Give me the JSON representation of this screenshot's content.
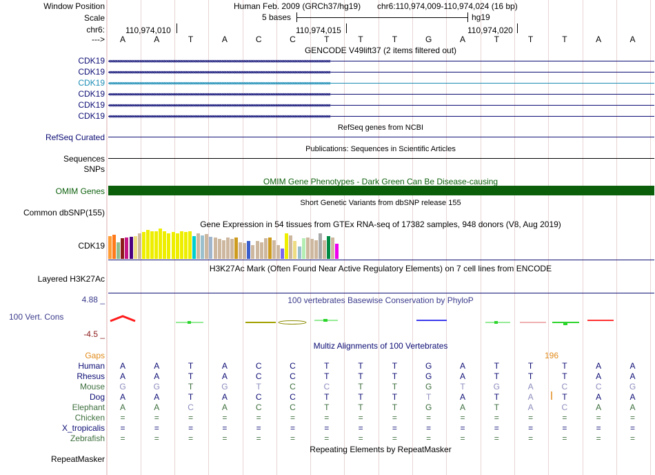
{
  "header": {
    "window_position_label": "Window Position",
    "assembly": "Human Feb. 2009 (GRCh37/hg19)",
    "position": "chr6:110,974,009-110,974,024 (16 bp)",
    "scale_label": "Scale",
    "scale_bar_text": "5 bases",
    "scale_db": "hg19",
    "chr_label": "chr6:",
    "ticks": [
      "110,974,010",
      "110,974,015",
      "110,974,020"
    ],
    "strand_label": "--->"
  },
  "bases": [
    "A",
    "A",
    "T",
    "A",
    "C",
    "C",
    "T",
    "T",
    "T",
    "G",
    "A",
    "T",
    "T",
    "T",
    "A",
    "A"
  ],
  "gencode": {
    "title": "GENCODE V49lift37 (2 items filtered out)",
    "transcripts": [
      "CDK19",
      "CDK19",
      "CDK19",
      "CDK19",
      "CDK19",
      "CDK19"
    ]
  },
  "refseq": {
    "title": "RefSeq genes from NCBI",
    "label": "RefSeq Curated"
  },
  "publications": {
    "title": "Publications: Sequences in Scientific Articles",
    "label": "Sequences"
  },
  "snps": {
    "label": "SNPs"
  },
  "omim": {
    "title": "OMIM Gene Phenotypes - Dark Green Can Be Disease-causing",
    "label": "OMIM Genes",
    "color": "#0b5f0b"
  },
  "dbsnp": {
    "title": "Short Genetic Variants from dbSNP release 155",
    "label": "Common dbSNP(155)"
  },
  "gtex": {
    "title": "Gene Expression in 54 tissues from GTEx RNA-seq of 17382 samples, 948 donors (V8, Aug 2019)",
    "label": "CDK19",
    "bars": [
      {
        "level": 0.75,
        "color": "#ff9c33"
      },
      {
        "level": 0.8,
        "color": "#ff7a1a"
      },
      {
        "level": 0.55,
        "color": "#8fbc8f"
      },
      {
        "level": 0.68,
        "color": "#8b1a1a"
      },
      {
        "level": 0.7,
        "color": "#c71585"
      },
      {
        "level": 0.72,
        "color": "#4b0082"
      },
      {
        "level": 0.75,
        "color": "#eedd82"
      },
      {
        "level": 0.85,
        "color": "#cdb79e"
      },
      {
        "level": 0.88,
        "color": "#eeee00"
      },
      {
        "level": 0.95,
        "color": "#eeee00"
      },
      {
        "level": 0.9,
        "color": "#eeee00"
      },
      {
        "level": 0.92,
        "color": "#eeee00"
      },
      {
        "level": 1.0,
        "color": "#eeee00"
      },
      {
        "level": 0.9,
        "color": "#eeee00"
      },
      {
        "level": 0.85,
        "color": "#eeee00"
      },
      {
        "level": 0.88,
        "color": "#eeee00"
      },
      {
        "level": 0.85,
        "color": "#eeee00"
      },
      {
        "level": 0.9,
        "color": "#eeee00"
      },
      {
        "level": 0.88,
        "color": "#eeee00"
      },
      {
        "level": 0.9,
        "color": "#eeee00"
      },
      {
        "level": 0.75,
        "color": "#00cdcd"
      },
      {
        "level": 0.85,
        "color": "#cdb79e"
      },
      {
        "level": 0.78,
        "color": "#9ac0cd"
      },
      {
        "level": 0.82,
        "color": "#cdb79e"
      },
      {
        "level": 0.72,
        "color": "#9fb6cd"
      },
      {
        "level": 0.7,
        "color": "#cdb79e"
      },
      {
        "level": 0.65,
        "color": "#cdb79e"
      },
      {
        "level": 0.62,
        "color": "#cdb79e"
      },
      {
        "level": 0.7,
        "color": "#cdb79e"
      },
      {
        "level": 0.66,
        "color": "#cdb79e"
      },
      {
        "level": 0.7,
        "color": "#cd9b1d"
      },
      {
        "level": 0.55,
        "color": "#cdb79e"
      },
      {
        "level": 0.52,
        "color": "#cdb79e"
      },
      {
        "level": 0.6,
        "color": "#3a5fcd"
      },
      {
        "level": 0.45,
        "color": "#cdb79e"
      },
      {
        "level": 0.6,
        "color": "#cdb79e"
      },
      {
        "level": 0.55,
        "color": "#cdb79e"
      },
      {
        "level": 0.68,
        "color": "#cdb79e"
      },
      {
        "level": 0.7,
        "color": "#cd9b1d"
      },
      {
        "level": 0.62,
        "color": "#cdb79e"
      },
      {
        "level": 0.45,
        "color": "#cdb79e"
      },
      {
        "level": 0.35,
        "color": "#7a67ee"
      },
      {
        "level": 0.85,
        "color": "#eeee00"
      },
      {
        "level": 0.78,
        "color": "#cdb79e"
      },
      {
        "level": 0.6,
        "color": "#eedc82"
      },
      {
        "level": 0.4,
        "color": "#9ac0cd"
      },
      {
        "level": 0.68,
        "color": "#b4eeb4"
      },
      {
        "level": 0.7,
        "color": "#cdb79e"
      },
      {
        "level": 0.65,
        "color": "#cdb79e"
      },
      {
        "level": 0.62,
        "color": "#cdb79e"
      },
      {
        "level": 0.85,
        "color": "#a9a9a9"
      },
      {
        "level": 0.62,
        "color": "#cdb79e"
      },
      {
        "level": 0.75,
        "color": "#008b45"
      },
      {
        "level": 0.7,
        "color": "#cdb79e"
      },
      {
        "level": 0.5,
        "color": "#ee00ee"
      }
    ]
  },
  "h3k27ac": {
    "title": "H3K27Ac Mark (Often Found Near Active Regulatory Elements) on 7 cell lines from ENCODE",
    "label": "Layered H3K27Ac"
  },
  "phylop": {
    "title": "100 vertebrates Basewise Conservation by PhyloP",
    "label": "100 Vert. Cons",
    "ymax": "4.88 _",
    "ymin": "-4.5 _",
    "bar_color": "#3a3aaa"
  },
  "multiz": {
    "title": "Multiz Alignments of 100 Vertebrates",
    "gaps_label": "Gaps",
    "gap_count": "196",
    "species": [
      {
        "name": "Human",
        "color": "#0b0b74",
        "bases": [
          "A",
          "A",
          "T",
          "A",
          "C",
          "C",
          "T",
          "T",
          "T",
          "G",
          "A",
          "T",
          "T",
          "T",
          "A",
          "A"
        ]
      },
      {
        "name": "Rhesus",
        "color": "#0b0b74",
        "bases": [
          "A",
          "A",
          "T",
          "A",
          "C",
          "C",
          "T",
          "T",
          "T",
          "G",
          "A",
          "T",
          "T",
          "T",
          "A",
          "A"
        ]
      },
      {
        "name": "Mouse",
        "color": "#3c6e3c",
        "bases": [
          "G",
          "G",
          "T",
          "G",
          "T",
          "C",
          "C",
          "T",
          "T",
          "G",
          "T",
          "G",
          "A",
          "C",
          "C",
          "G"
        ]
      },
      {
        "name": "Dog",
        "color": "#0b0b74",
        "bases": [
          "A",
          "A",
          "T",
          "A",
          "C",
          "C",
          "T",
          "T",
          "T",
          "T",
          "A",
          "T",
          "A",
          "T",
          "A",
          "A"
        ]
      },
      {
        "name": "Elephant",
        "color": "#3c6e3c",
        "bases": [
          "A",
          "A",
          "C",
          "A",
          "C",
          "C",
          "T",
          "T",
          "T",
          "G",
          "A",
          "T",
          "A",
          "C",
          "A",
          "A"
        ]
      },
      {
        "name": "Chicken",
        "color": "#3c6e3c",
        "bases": [
          "=",
          "=",
          "=",
          "=",
          "=",
          "=",
          "=",
          "=",
          "=",
          "=",
          "=",
          "=",
          "=",
          "=",
          "=",
          "="
        ]
      },
      {
        "name": "X_tropicalis",
        "color": "#0b0b74",
        "bases": [
          "=",
          "=",
          "=",
          "=",
          "=",
          "=",
          "=",
          "=",
          "=",
          "=",
          "=",
          "=",
          "=",
          "=",
          "=",
          "="
        ]
      },
      {
        "name": "Zebrafish",
        "color": "#3c6e3c",
        "bases": [
          "=",
          "=",
          "=",
          "=",
          "=",
          "=",
          "=",
          "=",
          "=",
          "=",
          "=",
          "=",
          "=",
          "=",
          "=",
          "="
        ]
      }
    ]
  },
  "repeatmasker": {
    "title": "Repeating Elements by RepeatMasker",
    "label": "RepeatMasker"
  }
}
